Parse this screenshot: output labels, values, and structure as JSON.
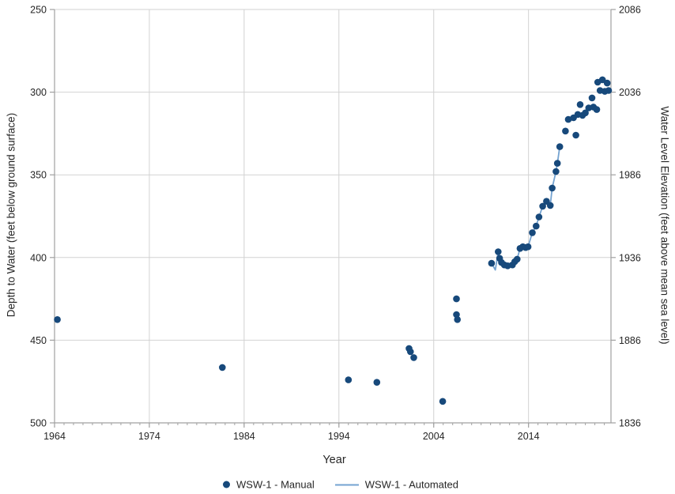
{
  "chart": {
    "x_label": "Year",
    "y_left_label": "Depth to Water (feet below ground surface)",
    "y_right_label": "Water Level Elevation (feet above mean sea level)"
  },
  "legend": {
    "manual": "WSW-1 - Manual",
    "automated": "WSW-1 - Automated"
  },
  "colors": {
    "marker": "#17497b",
    "line": "#74a3d1",
    "grid": "#d2d2d2",
    "axis": "#a0a0a0",
    "text": "#262626"
  },
  "chart_data": {
    "type": "scatter",
    "title": "",
    "xlabel": "Year",
    "ylabel_left": "Depth to Water (feet below ground surface)",
    "ylabel_right": "Water Level Elevation (feet above mean sea level)",
    "grid": true,
    "legend_position": "bottom",
    "x_axis": {
      "min": 1964,
      "max": 2022.7,
      "major_ticks": [
        1964,
        1974,
        1984,
        1994,
        2004,
        2014
      ],
      "minor_tick_step_years": 1
    },
    "y_left_axis": {
      "min": 250,
      "max": 500,
      "ticks": [
        250,
        300,
        350,
        400,
        450,
        500
      ],
      "direction": "increasing downward"
    },
    "y_right_axis": {
      "ticks": [
        2086,
        2036,
        1986,
        1936,
        1886,
        1836
      ],
      "relation": "elevation_ft = 2336 - depth_ft"
    },
    "series": [
      {
        "name": "WSW-1 - Manual",
        "type": "scatter",
        "units": [
          "year",
          "depth_ft_below_ground"
        ],
        "points": [
          [
            1964.3,
            437.5
          ],
          [
            1981.7,
            466.5
          ],
          [
            1995.0,
            474.0
          ],
          [
            1998.0,
            475.5
          ],
          [
            2001.4,
            455.0
          ],
          [
            2001.55,
            457.0
          ],
          [
            2001.9,
            460.5
          ],
          [
            2004.95,
            487.0
          ],
          [
            2006.4,
            425.0
          ],
          [
            2006.4,
            434.5
          ],
          [
            2006.5,
            437.5
          ],
          [
            2010.1,
            403.5
          ],
          [
            2010.8,
            396.5
          ],
          [
            2010.95,
            400.5
          ],
          [
            2011.15,
            403.0
          ],
          [
            2011.45,
            404.5
          ],
          [
            2011.8,
            405.0
          ],
          [
            2012.3,
            404.5
          ],
          [
            2012.55,
            402.5
          ],
          [
            2012.8,
            401.0
          ],
          [
            2013.1,
            394.5
          ],
          [
            2013.4,
            393.5
          ],
          [
            2013.7,
            394.0
          ],
          [
            2013.95,
            393.5
          ],
          [
            2014.4,
            385.0
          ],
          [
            2014.8,
            381.0
          ],
          [
            2015.1,
            375.5
          ],
          [
            2015.5,
            369.0
          ],
          [
            2015.9,
            366.0
          ],
          [
            2016.3,
            368.5
          ],
          [
            2016.5,
            358.0
          ],
          [
            2016.9,
            348.0
          ],
          [
            2017.05,
            343.0
          ],
          [
            2017.3,
            333.0
          ],
          [
            2017.9,
            323.5
          ],
          [
            2018.2,
            316.5
          ],
          [
            2018.75,
            315.5
          ],
          [
            2019.0,
            326.0
          ],
          [
            2019.2,
            313.5
          ],
          [
            2019.45,
            307.5
          ],
          [
            2019.7,
            314.0
          ],
          [
            2020.0,
            312.5
          ],
          [
            2020.35,
            309.5
          ],
          [
            2020.7,
            303.5
          ],
          [
            2020.85,
            309.0
          ],
          [
            2021.2,
            310.5
          ],
          [
            2021.3,
            294.0
          ],
          [
            2021.55,
            299.0
          ],
          [
            2021.8,
            292.5
          ],
          [
            2022.05,
            299.5
          ],
          [
            2022.3,
            294.5
          ],
          [
            2022.45,
            299.0
          ]
        ]
      },
      {
        "name": "WSW-1 - Automated",
        "type": "line",
        "units": [
          "year",
          "depth_ft_below_ground"
        ],
        "points": [
          [
            2010.1,
            403.5
          ],
          [
            2010.5,
            407.5
          ],
          [
            2010.8,
            396.5
          ],
          [
            2010.95,
            400.5
          ],
          [
            2011.15,
            403.0
          ],
          [
            2011.45,
            404.5
          ],
          [
            2011.8,
            405.0
          ],
          [
            2012.3,
            404.5
          ],
          [
            2012.55,
            402.5
          ],
          [
            2012.8,
            401.0
          ],
          [
            2013.1,
            394.5
          ],
          [
            2013.4,
            393.5
          ],
          [
            2013.7,
            394.0
          ],
          [
            2013.95,
            393.5
          ],
          [
            2014.4,
            385.0
          ],
          [
            2014.8,
            381.0
          ],
          [
            2015.1,
            375.5
          ],
          [
            2015.5,
            369.0
          ],
          [
            2015.9,
            366.0
          ],
          [
            2016.3,
            368.5
          ],
          [
            2016.5,
            358.0
          ],
          [
            2016.9,
            348.0
          ],
          [
            2017.05,
            343.0
          ],
          [
            2017.3,
            333.0
          ]
        ]
      }
    ]
  }
}
